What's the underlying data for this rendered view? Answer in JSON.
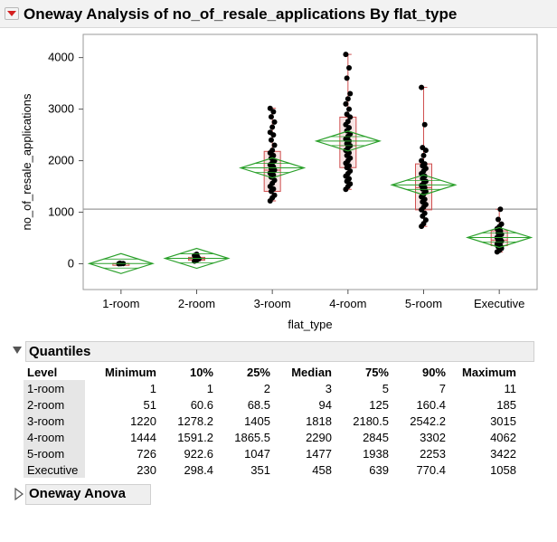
{
  "report": {
    "title": "Oneway Analysis of no_of_resale_applications By flat_type"
  },
  "chart_data": {
    "type": "scatter",
    "xlabel": "flat_type",
    "ylabel": "no_of_resale_applications",
    "categories": [
      "1-room",
      "2-room",
      "3-room",
      "4-room",
      "5-room",
      "Executive"
    ],
    "yticks": [
      0,
      1000,
      2000,
      3000,
      4000
    ],
    "ylim": [
      -500,
      4450
    ],
    "grand_mean": 1060,
    "means": [
      4,
      105,
      1860,
      2380,
      1530,
      510
    ],
    "quantiles": [
      {
        "min": 1,
        "q1": 2,
        "median": 3,
        "q3": 5,
        "max": 11
      },
      {
        "min": 51,
        "q1": 68.5,
        "median": 94,
        "q3": 125,
        "max": 185
      },
      {
        "min": 1220,
        "q1": 1405,
        "median": 1818,
        "q3": 2180.5,
        "max": 3015
      },
      {
        "min": 1444,
        "q1": 1865.5,
        "median": 2290,
        "q3": 2845,
        "max": 4062
      },
      {
        "min": 726,
        "q1": 1047,
        "median": 1477,
        "q3": 1938,
        "max": 3422
      },
      {
        "min": 230,
        "q1": 351,
        "median": 458,
        "q3": 639,
        "max": 1058
      }
    ],
    "points": [
      [
        1,
        3,
        5,
        11
      ],
      [
        51,
        70,
        94,
        110,
        125,
        160,
        185
      ],
      [
        1220,
        1280,
        1330,
        1405,
        1450,
        1500,
        1560,
        1620,
        1680,
        1720,
        1760,
        1800,
        1818,
        1850,
        1880,
        1920,
        1960,
        2000,
        2050,
        2100,
        2150,
        2200,
        2300,
        2400,
        2500,
        2550,
        2650,
        2750,
        2850,
        2950,
        3015
      ],
      [
        1444,
        1500,
        1550,
        1600,
        1650,
        1700,
        1750,
        1800,
        1866,
        1900,
        1950,
        2000,
        2050,
        2100,
        2150,
        2200,
        2250,
        2290,
        2330,
        2380,
        2420,
        2470,
        2520,
        2580,
        2640,
        2700,
        2760,
        2845,
        2900,
        3000,
        3100,
        3200,
        3300,
        3600,
        3800,
        4062
      ],
      [
        726,
        780,
        850,
        923,
        980,
        1047,
        1100,
        1150,
        1200,
        1250,
        1300,
        1350,
        1400,
        1450,
        1477,
        1520,
        1560,
        1600,
        1650,
        1700,
        1750,
        1800,
        1850,
        1900,
        1938,
        2000,
        2100,
        2200,
        2253,
        2700,
        3422
      ],
      [
        230,
        260,
        298,
        330,
        351,
        380,
        410,
        440,
        458,
        480,
        510,
        540,
        570,
        600,
        639,
        680,
        720,
        770,
        860,
        1058
      ]
    ]
  },
  "quantiles": {
    "title": "Quantiles",
    "headers": [
      "Level",
      "Minimum",
      "10%",
      "25%",
      "Median",
      "75%",
      "90%",
      "Maximum"
    ],
    "rows": [
      [
        "1-room",
        "1",
        "1",
        "2",
        "3",
        "5",
        "7",
        "11"
      ],
      [
        "2-room",
        "51",
        "60.6",
        "68.5",
        "94",
        "125",
        "160.4",
        "185"
      ],
      [
        "3-room",
        "1220",
        "1278.2",
        "1405",
        "1818",
        "2180.5",
        "2542.2",
        "3015"
      ],
      [
        "4-room",
        "1444",
        "1591.2",
        "1865.5",
        "2290",
        "2845",
        "3302",
        "4062"
      ],
      [
        "5-room",
        "726",
        "922.6",
        "1047",
        "1477",
        "1938",
        "2253",
        "3422"
      ],
      [
        "Executive",
        "230",
        "298.4",
        "351",
        "458",
        "639",
        "770.4",
        "1058"
      ]
    ]
  },
  "anova": {
    "title": "Oneway Anova"
  },
  "colors": {
    "diamond": "#2aa02a",
    "box": "#d05050",
    "point": "#000000",
    "meanline": "#9a9a9a"
  }
}
